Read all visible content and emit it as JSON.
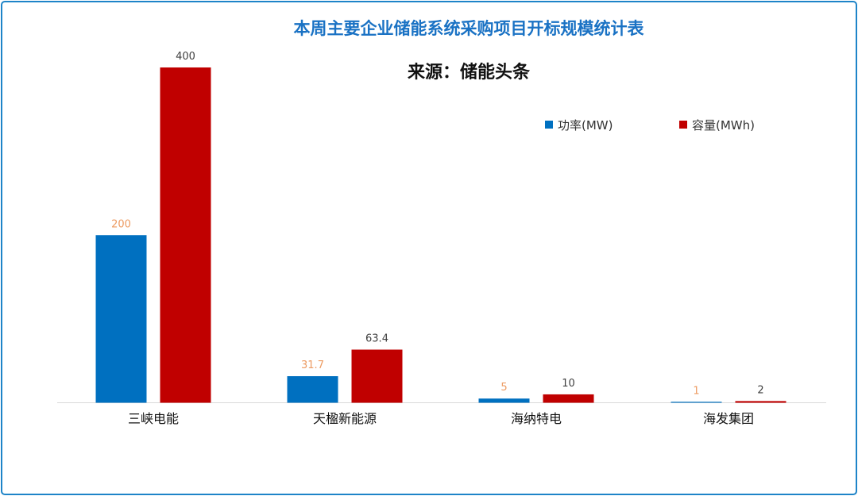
{
  "chart_data": {
    "type": "bar",
    "title": "本周主要企业储能系统采购项目开标规模统计表",
    "subtitle": "来源：储能头条",
    "categories": [
      "三峡电能",
      "天楹新能源",
      "海纳特电",
      "海发集团"
    ],
    "series": [
      {
        "name": "功率(MW)",
        "values": [
          200,
          31.7,
          5,
          1
        ],
        "labels": [
          "200",
          "31.7",
          "5",
          "1"
        ],
        "color": "#0070c0",
        "label_color": "#ed9b62"
      },
      {
        "name": "容量(MWh)",
        "values": [
          400,
          63.4,
          10,
          2
        ],
        "labels": [
          "400",
          "63.4",
          "10",
          "2"
        ],
        "color": "#c00000",
        "label_color": "#404040"
      }
    ],
    "ylim": [
      0,
      400
    ],
    "legend_position": "top-right",
    "grid": false
  }
}
